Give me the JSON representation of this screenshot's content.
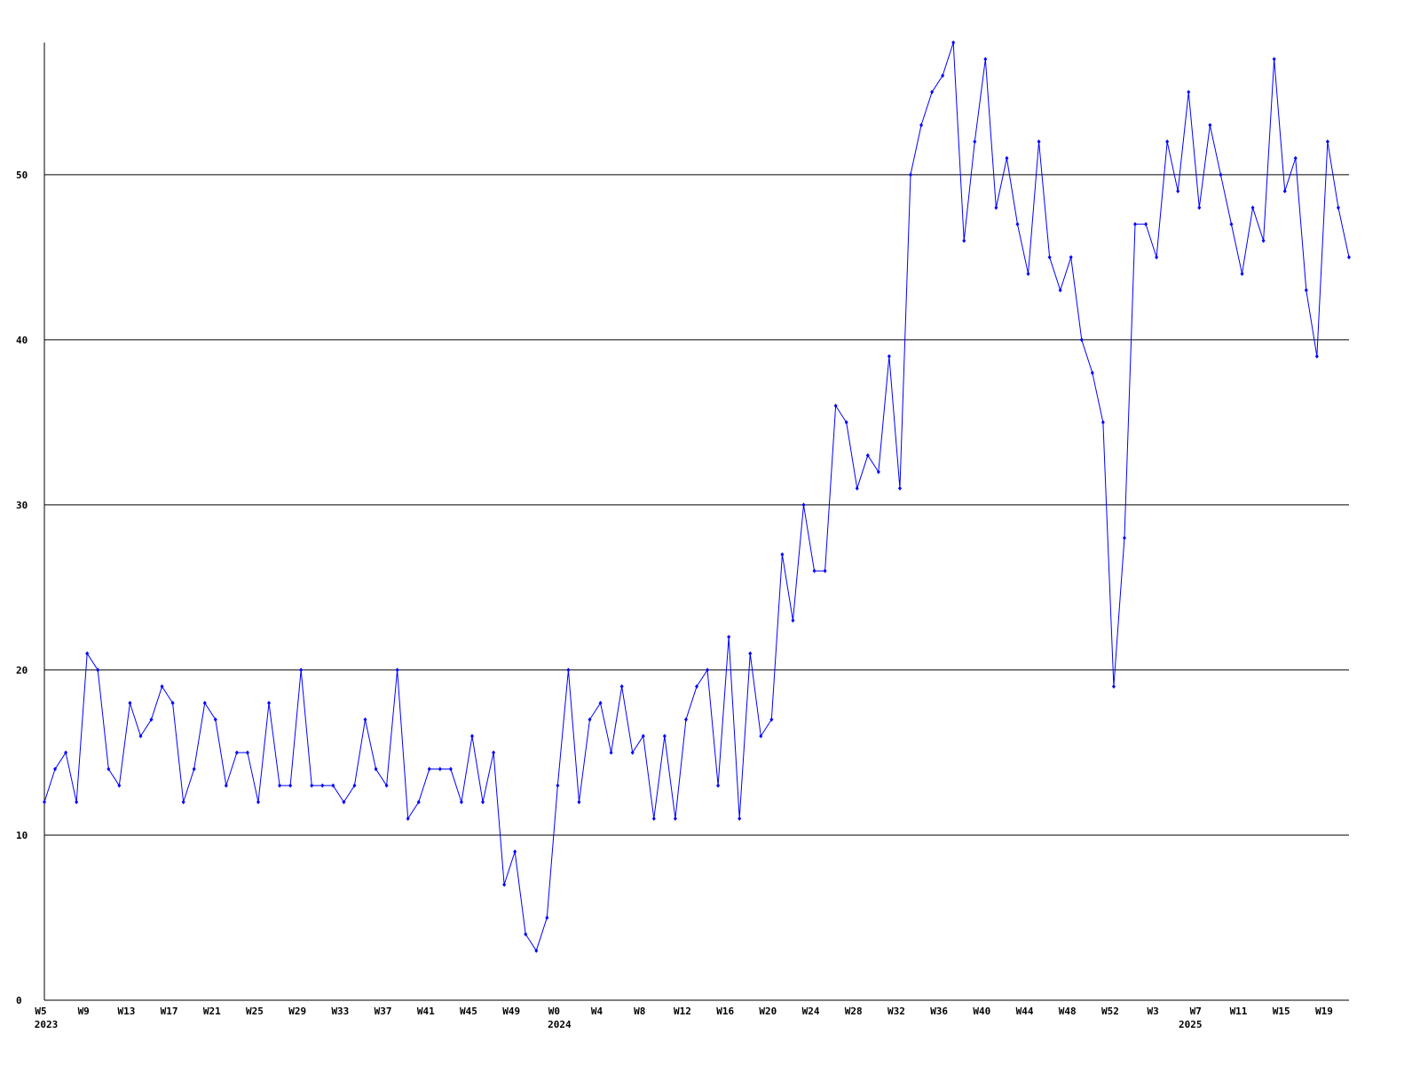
{
  "chart_data": {
    "type": "line",
    "categories": [
      "W5",
      null,
      null,
      null,
      "W9",
      null,
      null,
      null,
      "W13",
      null,
      null,
      null,
      "W17",
      null,
      null,
      null,
      "W21",
      null,
      null,
      null,
      "W25",
      null,
      null,
      null,
      "W29",
      null,
      null,
      null,
      "W33",
      null,
      null,
      null,
      "W37",
      null,
      null,
      null,
      "W41",
      null,
      null,
      null,
      "W45",
      null,
      null,
      null,
      "W49",
      null,
      null,
      null,
      "W0",
      null,
      null,
      null,
      "W4",
      null,
      null,
      null,
      "W8",
      null,
      null,
      null,
      "W12",
      null,
      null,
      null,
      "W16",
      null,
      null,
      null,
      "W20",
      null,
      null,
      null,
      "W24",
      null,
      null,
      null,
      "W28",
      null,
      null,
      null,
      "W32",
      null,
      null,
      null,
      "W36",
      null,
      null,
      null,
      "W40",
      null,
      null,
      null,
      "W44",
      null,
      null,
      null,
      "W48",
      null,
      null,
      null,
      "W52",
      null,
      null,
      null,
      "W3",
      null,
      null,
      null,
      "W7",
      null,
      null,
      null,
      "W11",
      null,
      null,
      null,
      "W15",
      null,
      null,
      null,
      "W19",
      null,
      null
    ],
    "years": [
      "2023",
      null,
      null,
      null,
      null,
      null,
      null,
      null,
      null,
      null,
      null,
      null,
      null,
      null,
      null,
      null,
      null,
      null,
      null,
      null,
      null,
      null,
      null,
      null,
      null,
      null,
      null,
      null,
      null,
      null,
      null,
      null,
      null,
      null,
      null,
      null,
      null,
      null,
      null,
      null,
      null,
      null,
      null,
      null,
      null,
      null,
      null,
      null,
      "2024",
      null,
      null,
      null,
      null,
      null,
      null,
      null,
      null,
      null,
      null,
      null,
      null,
      null,
      null,
      null,
      null,
      null,
      null,
      null,
      null,
      null,
      null,
      null,
      null,
      null,
      null,
      null,
      null,
      null,
      null,
      null,
      null,
      null,
      null,
      null,
      null,
      null,
      null,
      null,
      null,
      null,
      null,
      null,
      null,
      null,
      null,
      null,
      null,
      null,
      null,
      null,
      null,
      null,
      null,
      null,
      null,
      null,
      null,
      "2025",
      null,
      null,
      null,
      null,
      null,
      null,
      null,
      null,
      null,
      null,
      null,
      null,
      null,
      null,
      null,
      null,
      null,
      null,
      null,
      null,
      null
    ],
    "series": [
      {
        "color": "#0000ff",
        "values": [
          12,
          14,
          15,
          12,
          21,
          20,
          14,
          13,
          18,
          16,
          17,
          19,
          18,
          12,
          14,
          18,
          17,
          13,
          15,
          15,
          12,
          18,
          13,
          13,
          20,
          13,
          13,
          13,
          12,
          13,
          17,
          14,
          13,
          20,
          11,
          12,
          14,
          14,
          14,
          12,
          16,
          12,
          15,
          7,
          9,
          4,
          3,
          5,
          13,
          20,
          12,
          17,
          18,
          15,
          19,
          15,
          16,
          11,
          16,
          11,
          17,
          19,
          20,
          13,
          22,
          11,
          21,
          16,
          17,
          27,
          23,
          30,
          26,
          26,
          36,
          35,
          31,
          33,
          32,
          39,
          31,
          50,
          53,
          55,
          56,
          58,
          46,
          52,
          57,
          48,
          51,
          47,
          44,
          52,
          45,
          43,
          45,
          40,
          38,
          35,
          19,
          28,
          47,
          47,
          45,
          52,
          49,
          55,
          48,
          53,
          50,
          47,
          44,
          48,
          46,
          57,
          49,
          51,
          43,
          39,
          52,
          48,
          45
        ]
      }
    ],
    "ylim": [
      0,
      58
    ],
    "yticks": [
      0,
      10,
      20,
      30,
      40,
      50
    ],
    "grid": true
  }
}
